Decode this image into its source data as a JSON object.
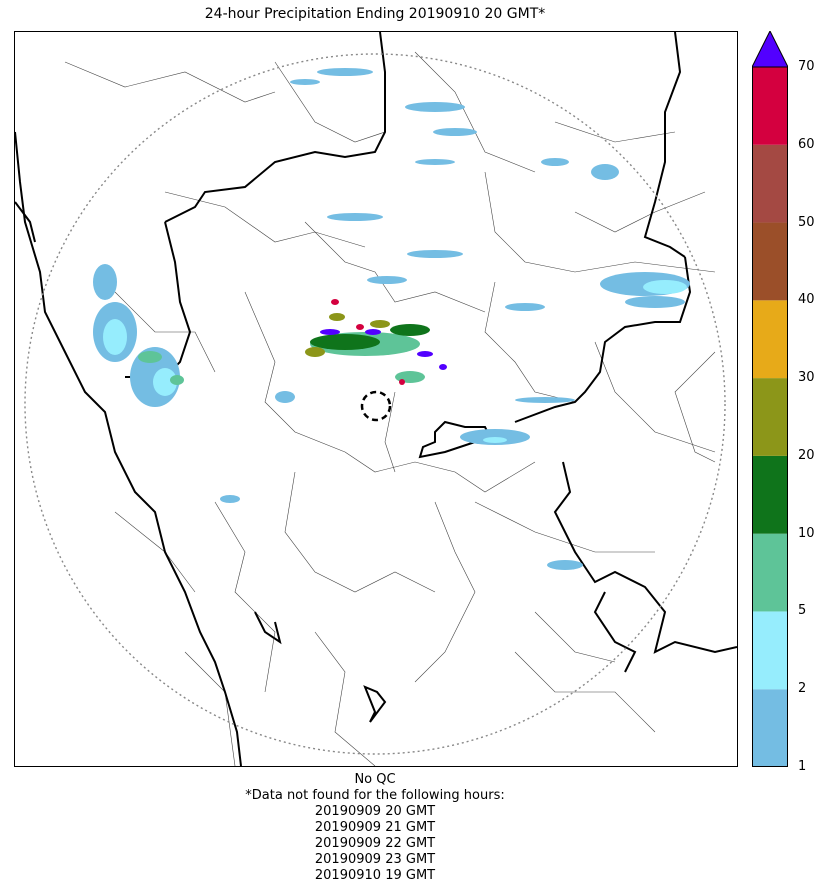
{
  "title": "24-hour Precipitation Ending 20190910 20 GMT*",
  "map": {
    "radar_marker": "dashed-circle",
    "range_ring": "dotted-circle"
  },
  "colorbar": {
    "levels": [
      "1",
      "2",
      "5",
      "10",
      "20",
      "30",
      "40",
      "50",
      "60",
      "70"
    ],
    "colors": [
      "#74bde3",
      "#96edfd",
      "#5ec498",
      "#0f741b",
      "#8c9619",
      "#e7aa19",
      "#9b4f29",
      "#a44943",
      "#d4003f"
    ],
    "extend_color": "#5200ff"
  },
  "footer": {
    "qc": "No QC",
    "note": "*Data not found for the following hours:",
    "hours": [
      "20190909 20 GMT",
      "20190909 21 GMT",
      "20190909 22 GMT",
      "20190909 23 GMT",
      "20190910 19 GMT"
    ]
  }
}
